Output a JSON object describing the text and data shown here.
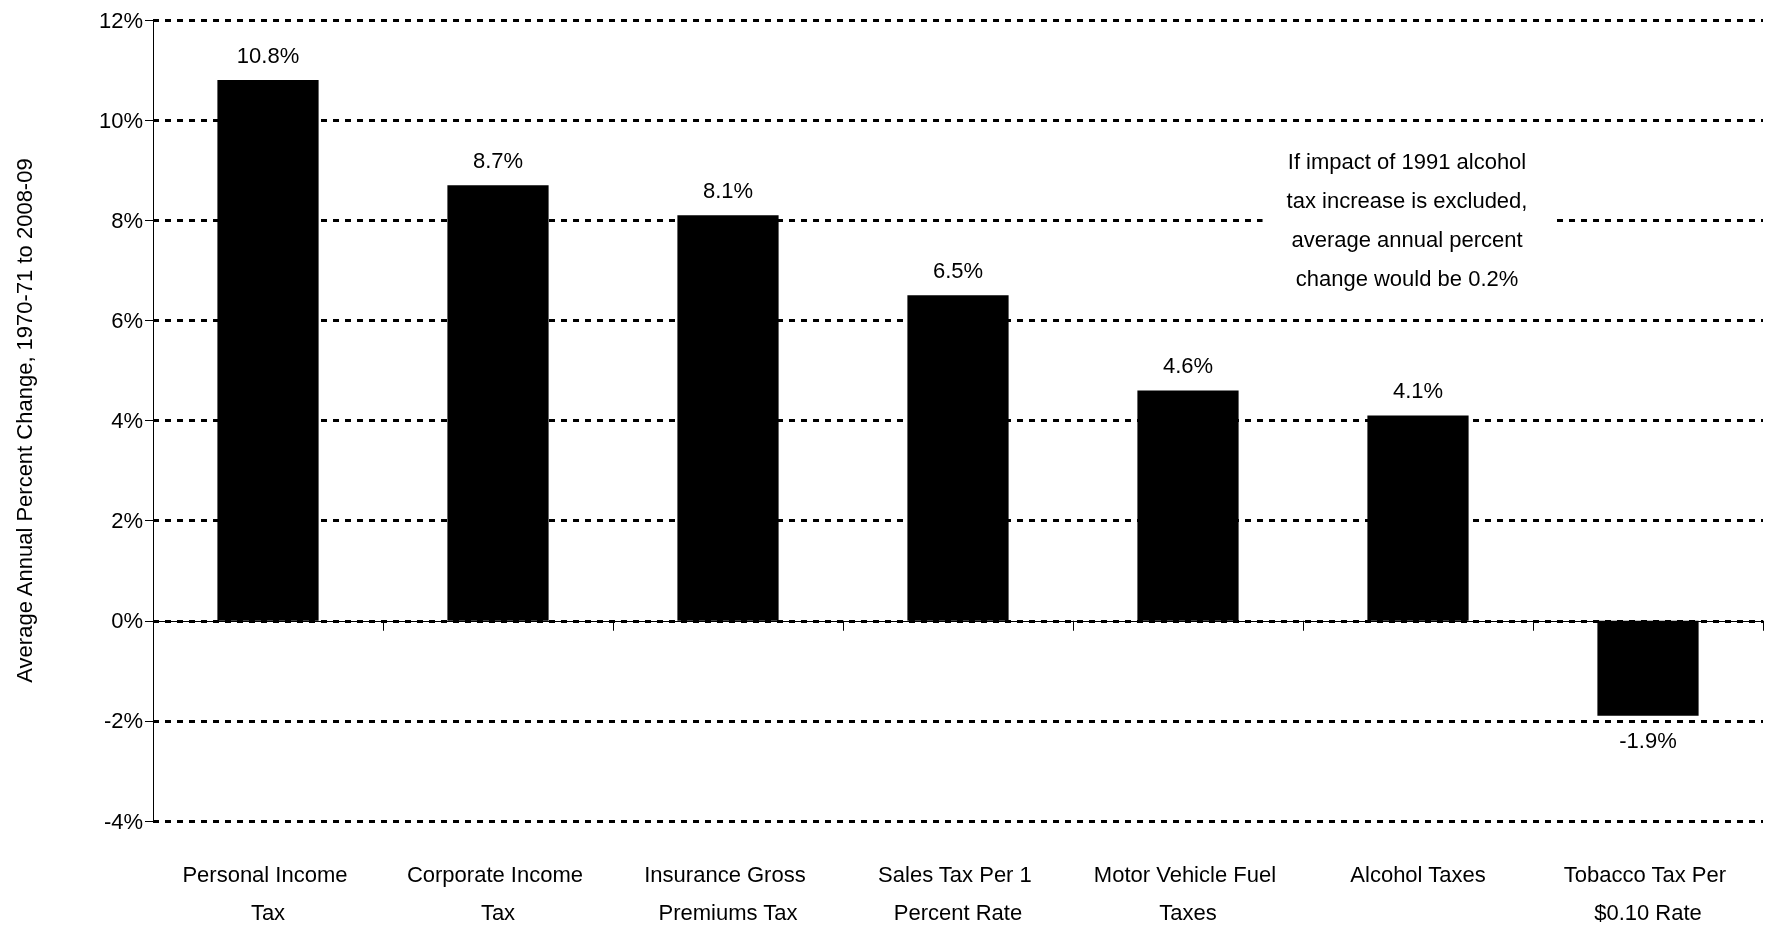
{
  "chart_data": {
    "type": "bar",
    "ylabel": "Average Annual Percent Change, 1970-71 to 2008-09",
    "categories": [
      "Personal Income Tax",
      "Corporate Income Tax",
      "Insurance Gross Premiums Tax",
      "Sales Tax Per 1 Percent Rate",
      "Motor Vehicle Fuel Taxes",
      "Alcohol Taxes",
      "Tobacco Tax Per $0.10 Rate"
    ],
    "values": [
      10.8,
      8.7,
      8.1,
      6.5,
      4.6,
      4.1,
      -1.9
    ],
    "value_labels": [
      "10.8%",
      "8.7%",
      "8.1%",
      "6.5%",
      "4.6%",
      "4.1%",
      "-1.9%"
    ],
    "color": "#000000",
    "ylim": [
      -4,
      12
    ],
    "yticks": [
      {
        "value": -4,
        "label": "-4%"
      },
      {
        "value": -2,
        "label": "-2%"
      },
      {
        "value": 0,
        "label": "0%"
      },
      {
        "value": 2,
        "label": "2%"
      },
      {
        "value": 4,
        "label": "4%"
      },
      {
        "value": 6,
        "label": "6%"
      },
      {
        "value": 8,
        "label": "8%"
      },
      {
        "value": 10,
        "label": "10%"
      },
      {
        "value": 12,
        "label": "12%"
      }
    ],
    "grid": "y",
    "annotations": [
      "If impact of 1991 alcohol tax increase is excluded, average annual percent change would be 0.2%"
    ]
  }
}
